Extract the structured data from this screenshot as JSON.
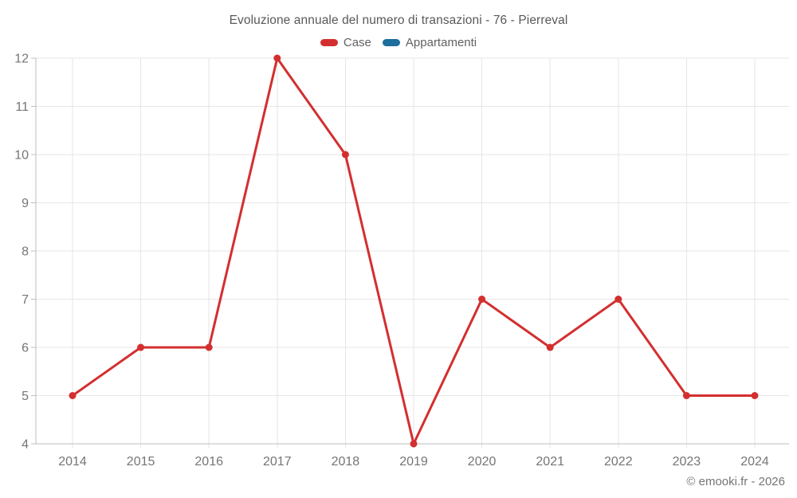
{
  "title": "Evoluzione annuale del numero di transazioni - 76 - Pierreval",
  "legend": [
    {
      "label": "Case",
      "color": "#d32f2f"
    },
    {
      "label": "Appartamenti",
      "color": "#1c6e9c"
    }
  ],
  "watermark": "© emooki.fr - 2026",
  "chart_data": {
    "type": "line",
    "title": "Evoluzione annuale del numero di transazioni - 76 - Pierreval",
    "categories": [
      "2014",
      "2015",
      "2016",
      "2017",
      "2018",
      "2019",
      "2020",
      "2021",
      "2022",
      "2023",
      "2024"
    ],
    "series": [
      {
        "name": "Case",
        "color": "#d32f2f",
        "values": [
          5,
          6,
          6,
          12,
          10,
          4,
          7,
          6,
          7,
          5,
          5
        ]
      },
      {
        "name": "Appartamenti",
        "color": "#1c6e9c",
        "values": []
      }
    ],
    "xlabel": "",
    "ylabel": "",
    "ylim": [
      4,
      12
    ],
    "ytick_step": 1,
    "grid": true,
    "legend_position": "top",
    "tick_label_color": "#757575",
    "marker_radius": 4.5,
    "line_width": 3
  }
}
